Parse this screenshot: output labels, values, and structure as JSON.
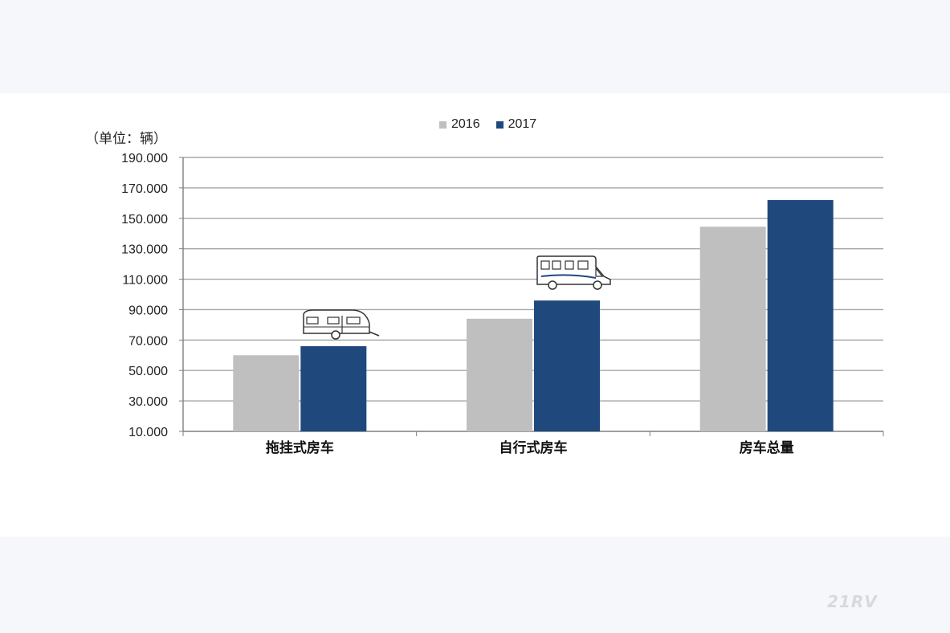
{
  "unit_label": "（单位：辆）",
  "colors": {
    "series_2016": "#bfbfbf",
    "series_2017": "#1f497d",
    "grid": "#a6a6a6",
    "axis": "#7f7f7f"
  },
  "chart_data": {
    "type": "bar",
    "categories": [
      "拖挂式房车",
      "自行式房车",
      "房车总量"
    ],
    "series": [
      {
        "name": "2016",
        "values": [
          60000,
          84000,
          144500
        ]
      },
      {
        "name": "2017",
        "values": [
          66000,
          96000,
          162000
        ]
      }
    ],
    "y_ticks": [
      "190.000",
      "170.000",
      "150.000",
      "130.000",
      "110.000",
      "90.000",
      "70.000",
      "50.000",
      "30.000",
      "10.000"
    ],
    "ylim": [
      10000,
      190000
    ],
    "legend_position": "top",
    "grid": true
  },
  "icons": {
    "caravan": "caravan-trailer-icon",
    "motorhome": "motorhome-icon"
  }
}
